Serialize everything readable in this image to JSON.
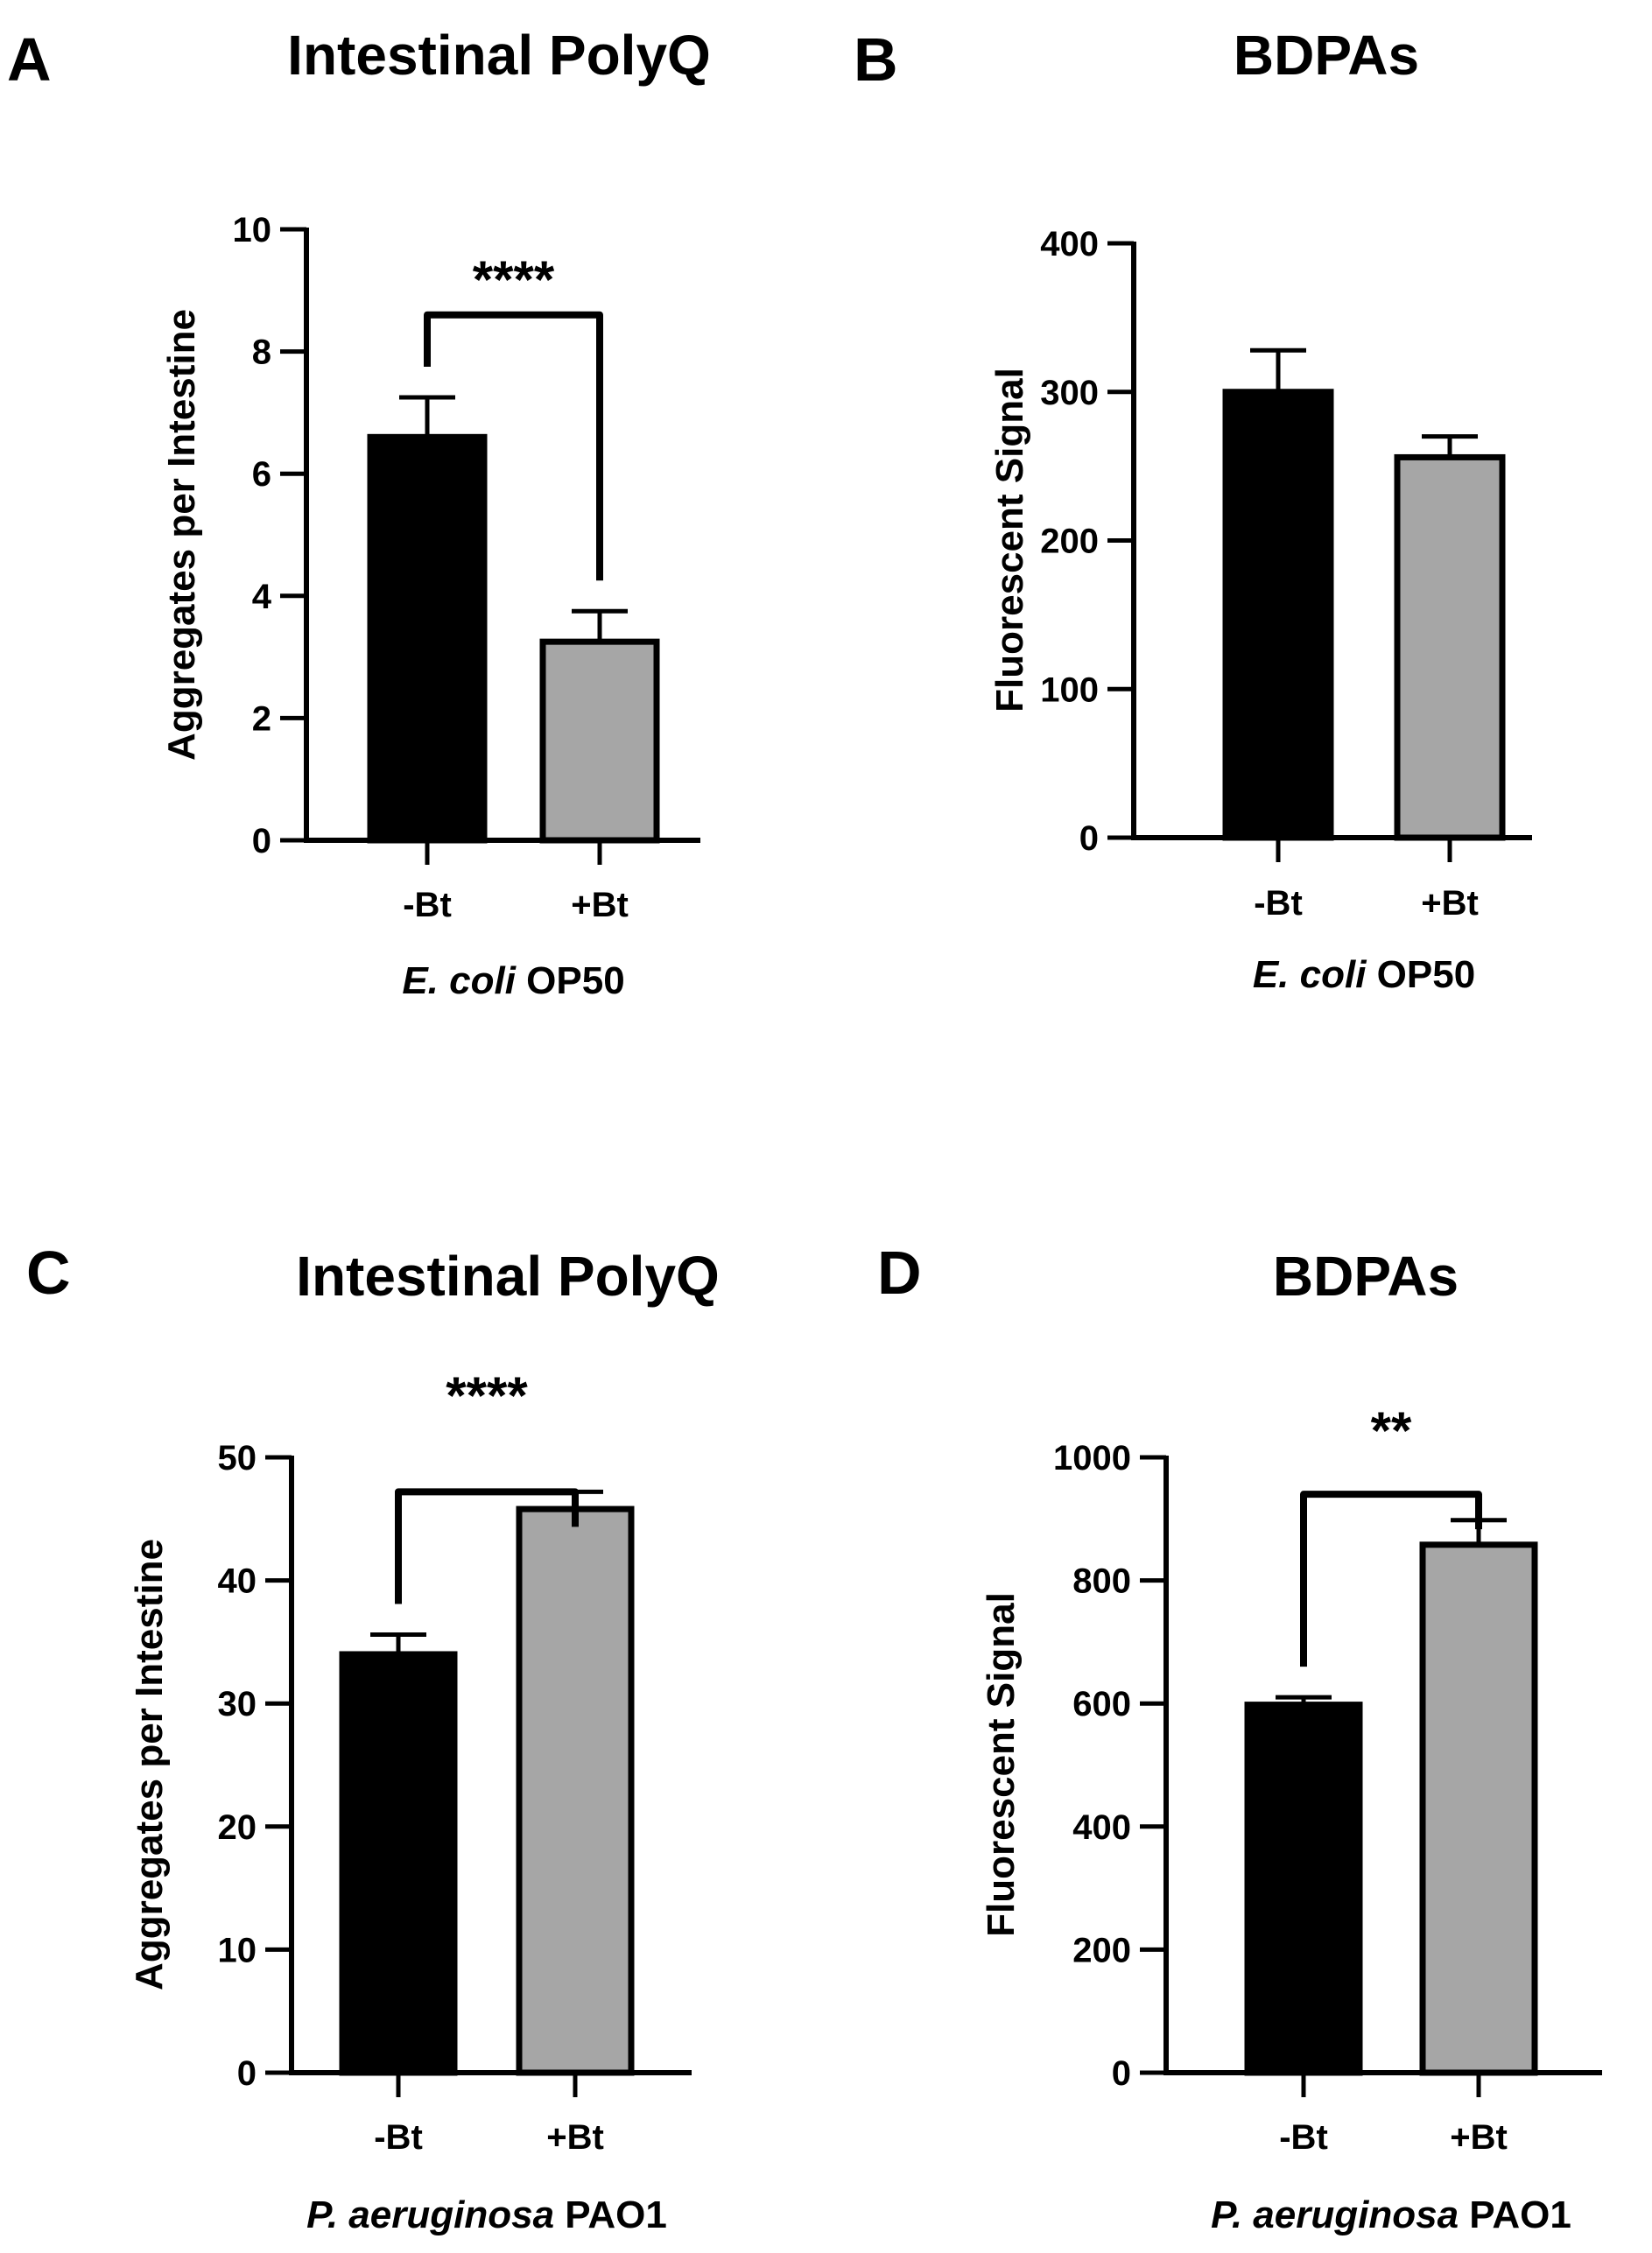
{
  "figure": {
    "panels": [
      {
        "letter": "A"
      },
      {
        "letter": "B"
      },
      {
        "letter": "C"
      },
      {
        "letter": "D"
      }
    ]
  },
  "chart_data": [
    {
      "type": "bar",
      "panel": "A",
      "title": "Intestinal PolyQ",
      "categories": [
        "-Bt",
        "+Bt"
      ],
      "values": [
        6.6,
        3.25
      ],
      "errors": [
        0.65,
        0.5
      ],
      "bar_colors": [
        "#000000",
        "#a6a6a6"
      ],
      "ylabel": "Aggregates per Intestine",
      "xlabel_italic": "E. coli",
      "xlabel_rest": " OP50",
      "ylim": [
        0,
        10
      ],
      "yticks": [
        0,
        2,
        4,
        6,
        8,
        10
      ],
      "yticks_labels": [
        "0",
        "2",
        "4",
        "6",
        "8",
        "10"
      ],
      "significance": "****"
    },
    {
      "type": "bar",
      "panel": "B",
      "title": "BDPAs",
      "categories": [
        "-Bt",
        "+Bt"
      ],
      "values": [
        300,
        256
      ],
      "errors": [
        28,
        14
      ],
      "bar_colors": [
        "#000000",
        "#a6a6a6"
      ],
      "ylabel": "Fluorescent Signal",
      "xlabel_italic": "E. coli",
      "xlabel_rest": " OP50",
      "ylim": [
        0,
        400
      ],
      "yticks": [
        0,
        100,
        200,
        300,
        400
      ],
      "yticks_labels": [
        "0",
        "100",
        "200",
        "300",
        "400"
      ],
      "significance": null
    },
    {
      "type": "bar",
      "panel": "C",
      "title": "Intestinal PolyQ",
      "categories": [
        "-Bt",
        "+Bt"
      ],
      "values": [
        34,
        45.8
      ],
      "errors": [
        1.6,
        1.4
      ],
      "bar_colors": [
        "#000000",
        "#a6a6a6"
      ],
      "ylabel": "Aggregates per Intestine",
      "xlabel_italic": "P. aeruginosa",
      "xlabel_rest": " PAO1",
      "ylim": [
        0,
        50
      ],
      "yticks": [
        0,
        10,
        20,
        30,
        40,
        50
      ],
      "yticks_labels": [
        "0",
        "10",
        "20",
        "30",
        "40",
        "50"
      ],
      "significance": "****"
    },
    {
      "type": "bar",
      "panel": "D",
      "title": "BDPAs",
      "categories": [
        "-Bt",
        "+Bt"
      ],
      "values": [
        598,
        858
      ],
      "errors": [
        12,
        40
      ],
      "bar_colors": [
        "#000000",
        "#a6a6a6"
      ],
      "ylabel": "Fluorescent Signal",
      "xlabel_italic": "P. aeruginosa",
      "xlabel_rest": " PAO1",
      "ylim": [
        0,
        1000
      ],
      "yticks": [
        0,
        200,
        400,
        600,
        800,
        1000
      ],
      "yticks_labels": [
        "0",
        "200",
        "400",
        "600",
        "800",
        "1000"
      ],
      "significance": "**"
    }
  ]
}
